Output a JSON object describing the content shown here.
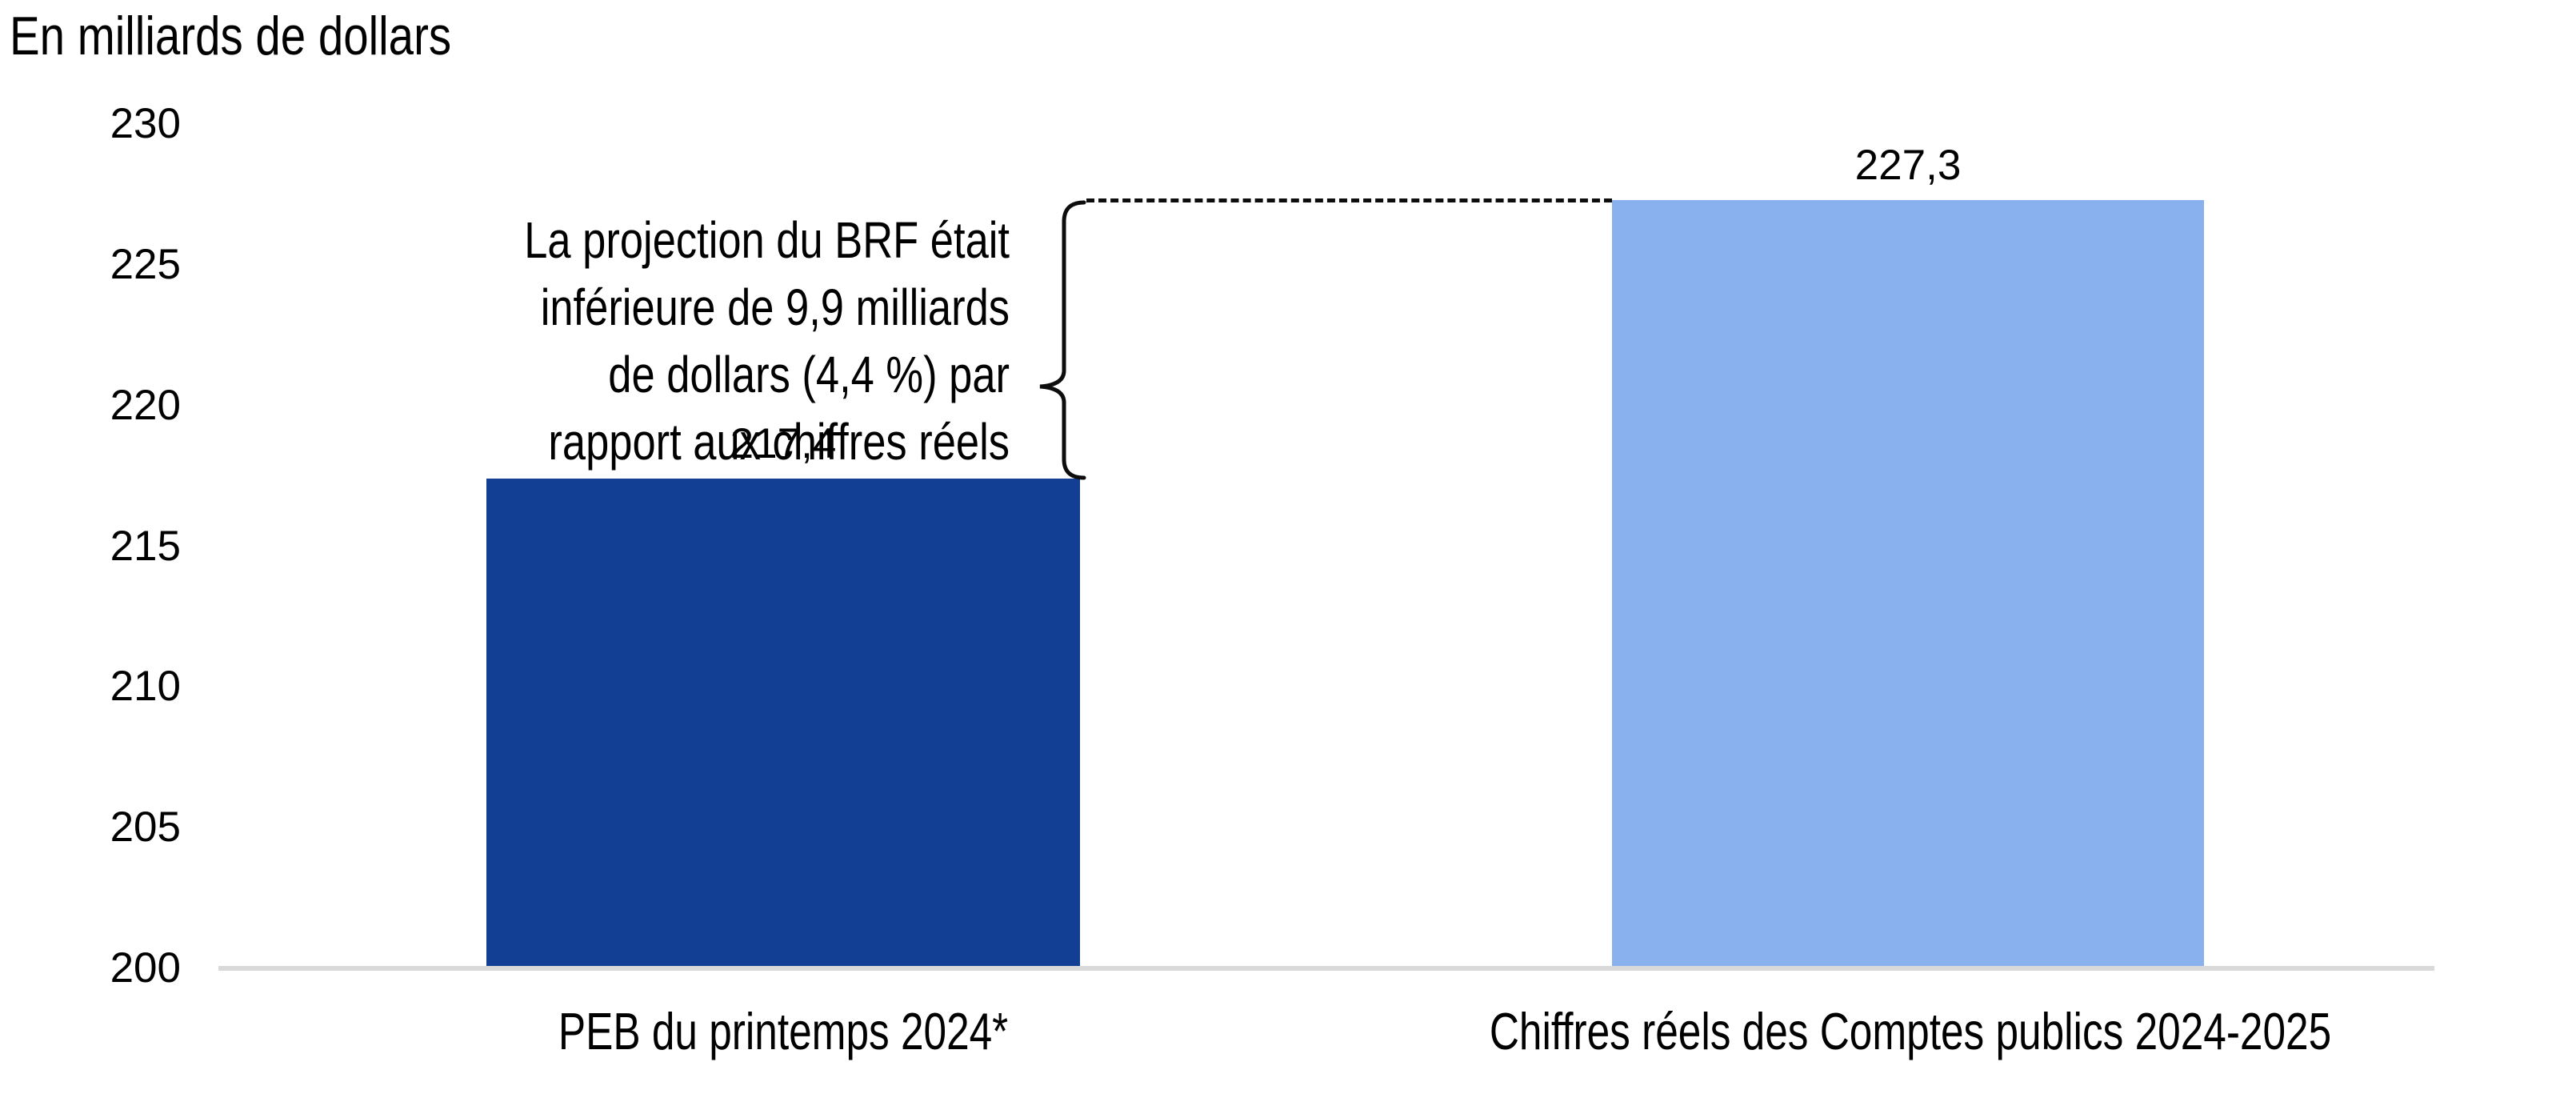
{
  "chart_data": {
    "type": "bar",
    "title": "En milliards de dollars",
    "categories": [
      "PEB du printemps 2024*",
      "Chiffres réels des Comptes publics 2024-2025"
    ],
    "values": [
      217.4,
      227.3
    ],
    "value_labels": [
      "217,4",
      "227,3"
    ],
    "series_colors": [
      "#123F94",
      "#89B1ED"
    ],
    "ylim": [
      200,
      230
    ],
    "yticks": [
      200,
      205,
      210,
      215,
      220,
      225,
      230
    ],
    "ytick_labels": [
      "200",
      "205",
      "210",
      "215",
      "220",
      "225",
      "230"
    ],
    "grid": false,
    "legend": "none",
    "axis_line_color": "#D9D9D9",
    "annotation": {
      "lines": [
        "La projection du BRF était",
        "inférieure de 9,9 milliards",
        "de dollars (4,4 %) par",
        "rapport aux chiffres réels"
      ],
      "target_difference": "9,9",
      "target_percent": "4,4 %",
      "brace_color": "#000000",
      "connector_style": "dashed"
    }
  }
}
